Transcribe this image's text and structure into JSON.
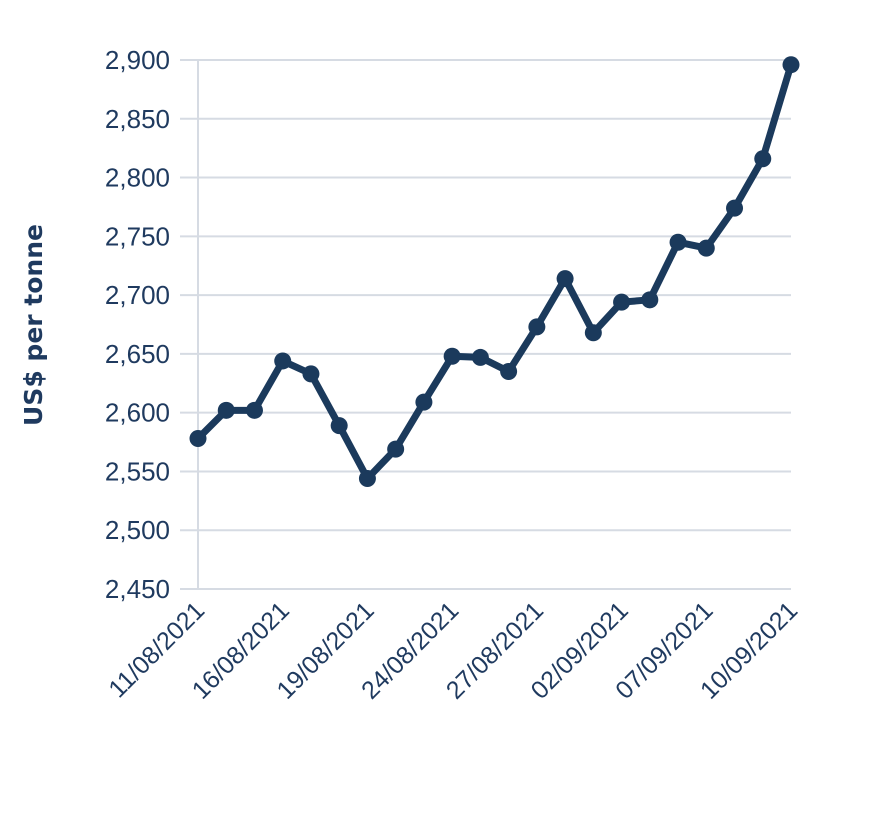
{
  "chart_data": {
    "type": "line",
    "ylabel": "US$ per tonne",
    "ylim": [
      2450,
      2900
    ],
    "yticks": [
      2450,
      2500,
      2550,
      2600,
      2650,
      2700,
      2750,
      2800,
      2850,
      2900
    ],
    "ytick_labels": [
      "2,450",
      "2,500",
      "2,550",
      "2,600",
      "2,650",
      "2,700",
      "2,750",
      "2,800",
      "2,850",
      "2,900"
    ],
    "x": [
      "11/08/2021",
      "12/08/2021",
      "13/08/2021",
      "16/08/2021",
      "17/08/2021",
      "18/08/2021",
      "19/08/2021",
      "20/08/2021",
      "23/08/2021",
      "24/08/2021",
      "25/08/2021",
      "26/08/2021",
      "27/08/2021",
      "30/08/2021",
      "01/09/2021",
      "02/09/2021",
      "03/09/2021",
      "06/09/2021",
      "07/09/2021",
      "08/09/2021",
      "09/09/2021",
      "10/09/2021"
    ],
    "xtick_labels": [
      "11/08/2021",
      "16/08/2021",
      "19/08/2021",
      "24/08/2021",
      "27/08/2021",
      "02/09/2021",
      "07/09/2021",
      "10/09/2021"
    ],
    "series": [
      {
        "values": [
          2578,
          2602,
          2602,
          2644,
          2633,
          2589,
          2544,
          2569,
          2609,
          2648,
          2647,
          2635,
          2673,
          2714,
          2668,
          2694,
          2696,
          2745,
          2740,
          2774,
          2816,
          2896
        ]
      }
    ],
    "grid": true,
    "legend": "none",
    "colors": {
      "series": "#1b3a5c",
      "grid": "#d6dbe3",
      "text": "#1f3a5f"
    }
  }
}
